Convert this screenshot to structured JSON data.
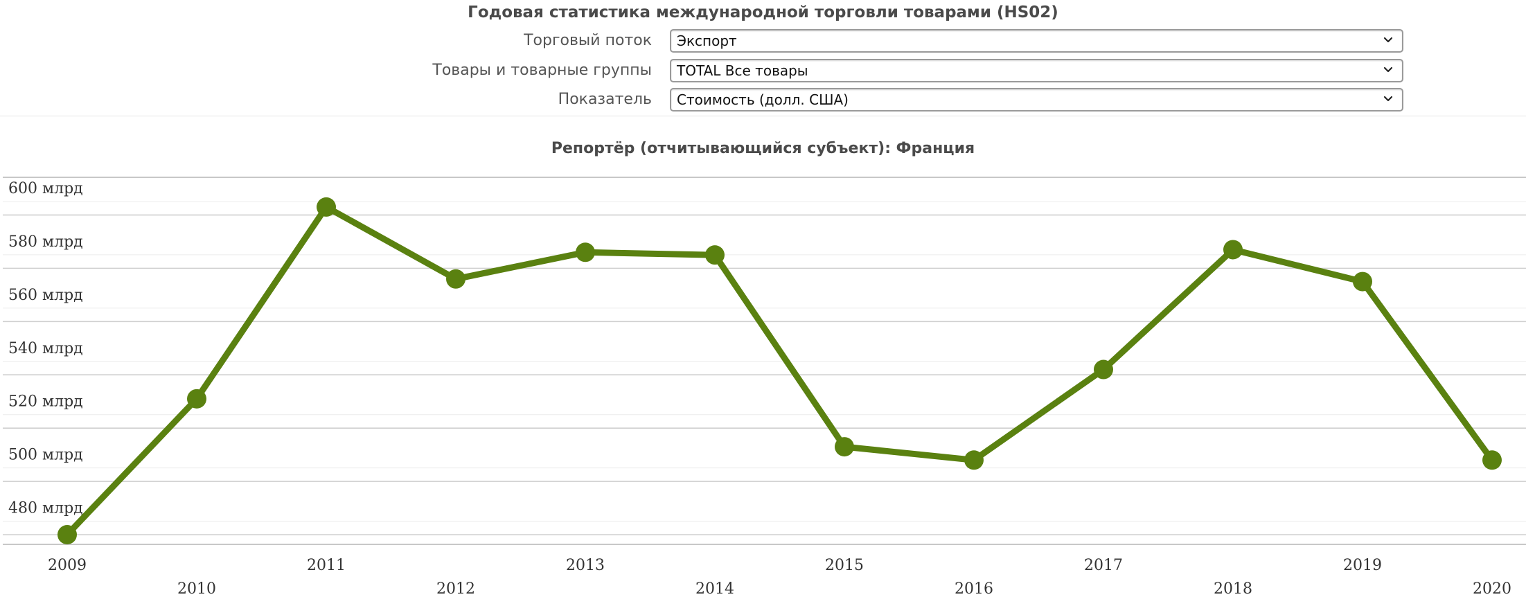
{
  "page": {
    "title": "Годовая статистика международной торговли товарами (HS02)"
  },
  "filters": [
    {
      "label": "Торговый поток",
      "value": "Экспорт"
    },
    {
      "label": "Товары и товарные группы",
      "value": "TOTAL Все товары"
    },
    {
      "label": "Показатель",
      "value": "Стоимость (долл. США)"
    }
  ],
  "chart_data": {
    "type": "line",
    "title": "Репортёр (отчитывающийся субъект): Франция",
    "x": [
      "2009",
      "2010",
      "2011",
      "2012",
      "2013",
      "2014",
      "2015",
      "2016",
      "2017",
      "2018",
      "2019",
      "2020"
    ],
    "series": [
      {
        "values": [
          470,
          521,
          593,
          566,
          576,
          575,
          503,
          498,
          532,
          577,
          565,
          498
        ],
        "color": "#5a8110"
      }
    ],
    "yticks": [
      480,
      500,
      520,
      540,
      560,
      580,
      600
    ],
    "ytick_labels": [
      "480 млрд",
      "500 млрд",
      "520 млрд",
      "540 млрд",
      "560 млрд",
      "580 млрд",
      "600 млрд"
    ],
    "ylim": [
      470,
      600
    ],
    "grid": true,
    "unit_scale": "млрд"
  }
}
